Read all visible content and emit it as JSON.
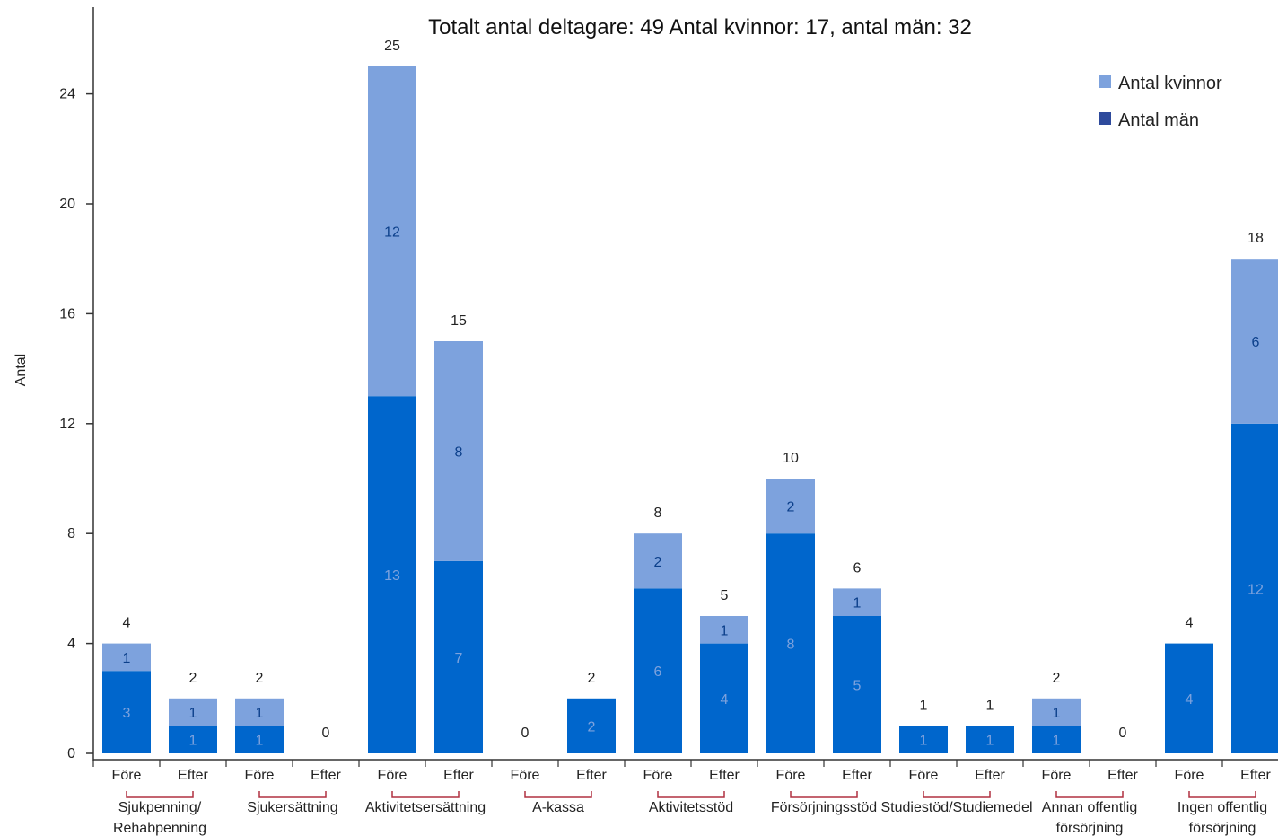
{
  "chart_data": {
    "type": "bar",
    "stacked": true,
    "title": "Totalt antal deltagare: 49 Antal kvinnor: 17, antal män: 32",
    "ylabel": "Antal",
    "ylim": [
      0,
      26
    ],
    "yticks": [
      0,
      4,
      8,
      12,
      16,
      20,
      24
    ],
    "grid": false,
    "legend_position": "top-right",
    "groups": [
      "Sjukpenning/ Rehabpenning",
      "Sjukersättning",
      "Aktivitetsersättning",
      "A-kassa",
      "Aktivitetsstöd",
      "Försörjningsstöd",
      "Studiestöd/Studiemedel",
      "Annan offentlig försörjning",
      "Ingen offentlig försörjning"
    ],
    "group_lines": [
      [
        "Sjukpenning/",
        "Rehabpenning"
      ],
      [
        "Sjukersättning"
      ],
      [
        "Aktivitetsersättning"
      ],
      [
        "A-kassa"
      ],
      [
        "Aktivitetsstöd"
      ],
      [
        "Försörjningsstöd"
      ],
      [
        "Studiestöd/Studiemedel"
      ],
      [
        "Annan offentlig",
        "försörjning"
      ],
      [
        "Ingen offentlig",
        "försörjning"
      ]
    ],
    "subcategories": [
      "Före",
      "Efter"
    ],
    "series": [
      {
        "name": "Antal män",
        "color": "#0066cc",
        "values": [
          3,
          1,
          1,
          0,
          13,
          7,
          0,
          2,
          6,
          4,
          8,
          5,
          1,
          1,
          1,
          0,
          4,
          12
        ]
      },
      {
        "name": "Antal kvinnor",
        "color": "#7da2dd",
        "values": [
          1,
          1,
          1,
          0,
          12,
          8,
          0,
          0,
          2,
          1,
          2,
          1,
          0,
          0,
          1,
          0,
          0,
          6
        ]
      }
    ],
    "totals": [
      4,
      2,
      2,
      0,
      25,
      15,
      0,
      2,
      8,
      5,
      10,
      6,
      1,
      1,
      2,
      0,
      4,
      18
    ],
    "legend": [
      {
        "label": "Antal kvinnor",
        "color": "#7da2dd"
      },
      {
        "label": "Antal män",
        "color": "#2e4a9c"
      }
    ]
  }
}
